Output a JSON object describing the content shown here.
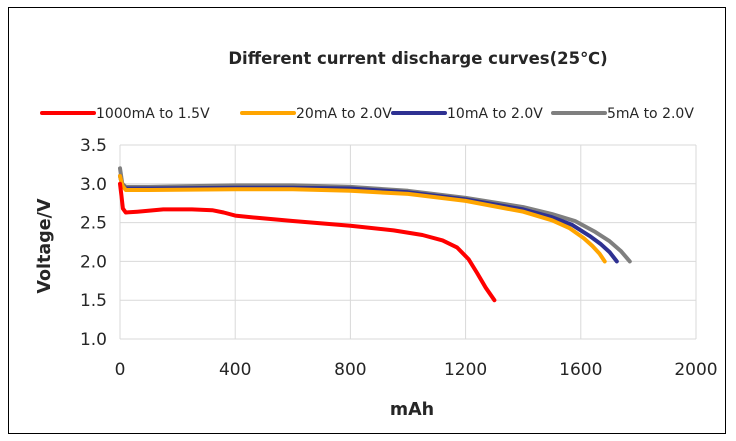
{
  "chart_data": {
    "type": "line",
    "title": "Different current discharge curves(25℃)",
    "xlabel": "mAh",
    "ylabel": "Voltage/V",
    "xlim": [
      0,
      2000
    ],
    "ylim": [
      1.0,
      3.5
    ],
    "x_ticks": [
      "0",
      "400",
      "800",
      "1200",
      "1600",
      "2000"
    ],
    "y_ticks": [
      "1.0",
      "1.5",
      "2.0",
      "2.5",
      "3.0",
      "3.5"
    ],
    "grid": true,
    "legend_position": "top",
    "series": [
      {
        "name": "1000mA to 1.5V",
        "color": "#ff0000",
        "points": [
          [
            0,
            3.0
          ],
          [
            5,
            2.85
          ],
          [
            10,
            2.68
          ],
          [
            20,
            2.63
          ],
          [
            60,
            2.64
          ],
          [
            150,
            2.67
          ],
          [
            250,
            2.67
          ],
          [
            320,
            2.66
          ],
          [
            360,
            2.63
          ],
          [
            400,
            2.59
          ],
          [
            480,
            2.56
          ],
          [
            600,
            2.52
          ],
          [
            800,
            2.46
          ],
          [
            950,
            2.4
          ],
          [
            1050,
            2.34
          ],
          [
            1120,
            2.27
          ],
          [
            1170,
            2.18
          ],
          [
            1210,
            2.03
          ],
          [
            1240,
            1.85
          ],
          [
            1270,
            1.66
          ],
          [
            1300,
            1.5
          ]
        ]
      },
      {
        "name": "20mA to 2.0V",
        "color": "#ffa500",
        "points": [
          [
            0,
            3.1
          ],
          [
            8,
            2.98
          ],
          [
            20,
            2.92
          ],
          [
            100,
            2.92
          ],
          [
            400,
            2.93
          ],
          [
            600,
            2.93
          ],
          [
            800,
            2.91
          ],
          [
            1000,
            2.87
          ],
          [
            1200,
            2.78
          ],
          [
            1400,
            2.64
          ],
          [
            1500,
            2.53
          ],
          [
            1560,
            2.43
          ],
          [
            1610,
            2.3
          ],
          [
            1640,
            2.2
          ],
          [
            1665,
            2.1
          ],
          [
            1683,
            2.0
          ]
        ]
      },
      {
        "name": "10mA to 2.0V",
        "color": "#2e3192",
        "points": [
          [
            0,
            3.1
          ],
          [
            8,
            2.98
          ],
          [
            20,
            2.94
          ],
          [
            100,
            2.94
          ],
          [
            400,
            2.95
          ],
          [
            600,
            2.95
          ],
          [
            800,
            2.94
          ],
          [
            1000,
            2.89
          ],
          [
            1200,
            2.8
          ],
          [
            1400,
            2.67
          ],
          [
            1500,
            2.57
          ],
          [
            1570,
            2.47
          ],
          [
            1630,
            2.33
          ],
          [
            1670,
            2.22
          ],
          [
            1700,
            2.12
          ],
          [
            1725,
            2.0
          ]
        ]
      },
      {
        "name": "5mA to 2.0V",
        "color": "#7f7f7f",
        "points": [
          [
            0,
            3.2
          ],
          [
            8,
            3.0
          ],
          [
            20,
            2.96
          ],
          [
            100,
            2.96
          ],
          [
            400,
            2.98
          ],
          [
            600,
            2.98
          ],
          [
            800,
            2.96
          ],
          [
            1000,
            2.91
          ],
          [
            1200,
            2.82
          ],
          [
            1400,
            2.7
          ],
          [
            1500,
            2.61
          ],
          [
            1580,
            2.52
          ],
          [
            1650,
            2.38
          ],
          [
            1700,
            2.26
          ],
          [
            1740,
            2.13
          ],
          [
            1770,
            2.0
          ]
        ]
      }
    ]
  }
}
